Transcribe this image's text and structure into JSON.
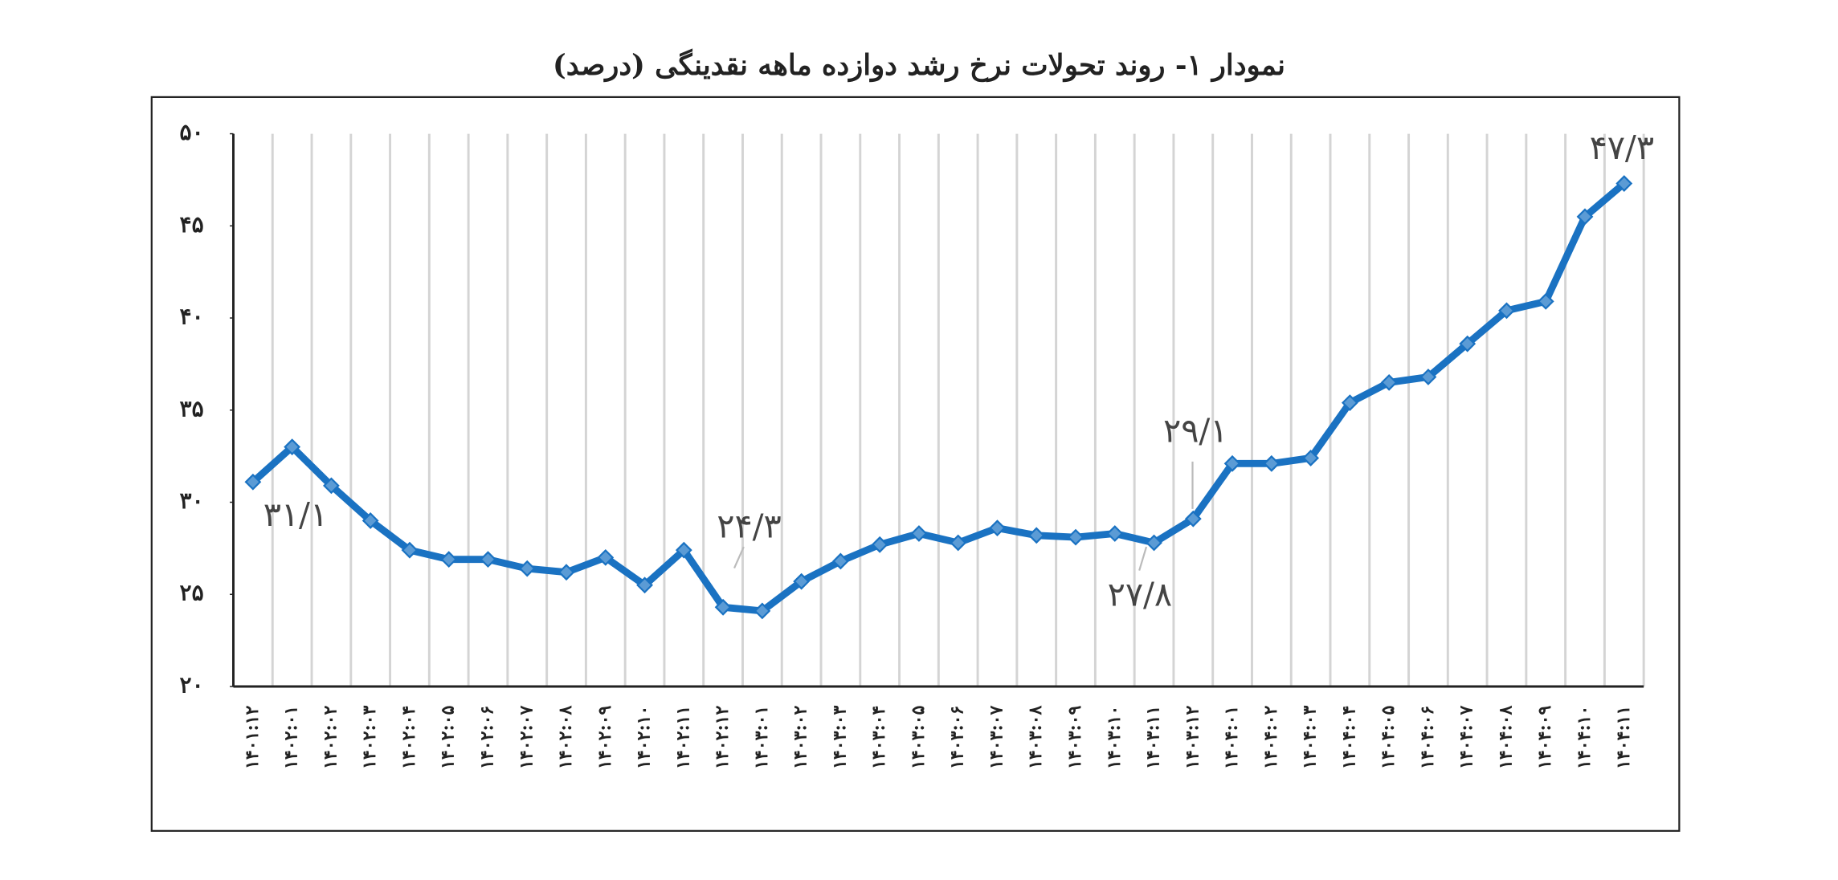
{
  "chart_data": {
    "type": "line",
    "title": "نمودار ۱- روند تحولات نرخ رشد دوازده ماهه نقدینگی (درصد)",
    "categories": [
      "۱۴۰۱:۱۲",
      "۱۴۰۲:۰۱",
      "۱۴۰۲:۰۲",
      "۱۴۰۲:۰۳",
      "۱۴۰۲:۰۴",
      "۱۴۰۲:۰۵",
      "۱۴۰۲:۰۶",
      "۱۴۰۲:۰۷",
      "۱۴۰۲:۰۸",
      "۱۴۰۲:۰۹",
      "۱۴۰۲:۱۰",
      "۱۴۰۲:۱۱",
      "۱۴۰۲:۱۲",
      "۱۴۰۳:۰۱",
      "۱۴۰۳:۰۲",
      "۱۴۰۳:۰۳",
      "۱۴۰۳:۰۴",
      "۱۴۰۳:۰۵",
      "۱۴۰۳:۰۶",
      "۱۴۰۳:۰۷",
      "۱۴۰۳:۰۸",
      "۱۴۰۳:۰۹",
      "۱۴۰۳:۱۰",
      "۱۴۰۳:۱۱",
      "۱۴۰۳:۱۲",
      "۱۴۰۴:۰۱",
      "۱۴۰۴:۰۲",
      "۱۴۰۴:۰۳",
      "۱۴۰۴:۰۴",
      "۱۴۰۴:۰۵",
      "۱۴۰۴:۰۶",
      "۱۴۰۴:۰۷",
      "۱۴۰۴:۰۸",
      "۱۴۰۴:۰۹",
      "۱۴۰۴:۱۰",
      "۱۴۰۴:۱۱"
    ],
    "series": [
      {
        "color": "#1a72c2",
        "values": [
          31.1,
          33.0,
          30.9,
          29.0,
          27.4,
          26.9,
          26.9,
          26.4,
          26.2,
          27.0,
          25.5,
          27.4,
          24.3,
          24.1,
          25.7,
          26.8,
          27.7,
          28.3,
          27.8,
          28.6,
          28.2,
          28.1,
          28.3,
          27.8,
          29.1,
          32.1,
          32.1,
          32.4,
          35.4,
          36.5,
          36.8,
          38.6,
          40.4,
          40.9,
          45.5,
          47.3
        ],
        "value_labels": [
          "۳۱/۱",
          null,
          null,
          null,
          null,
          null,
          null,
          null,
          null,
          null,
          null,
          null,
          "۲۴/۳",
          null,
          null,
          null,
          null,
          null,
          null,
          null,
          null,
          null,
          null,
          "۲۷/۸",
          "۲۹/۱",
          null,
          null,
          null,
          null,
          null,
          null,
          null,
          null,
          null,
          null,
          "۴۷/۳"
        ]
      }
    ],
    "ylim": [
      20,
      50
    ],
    "yticks": [
      {
        "value": 20,
        "label": "۲۰"
      },
      {
        "value": 25,
        "label": "۲۵"
      },
      {
        "value": 30,
        "label": "۳۰"
      },
      {
        "value": 35,
        "label": "۳۵"
      },
      {
        "value": 40,
        "label": "۴۰"
      },
      {
        "value": 45,
        "label": "۴۵"
      },
      {
        "value": 50,
        "label": "۵۰"
      }
    ],
    "grid": true
  }
}
